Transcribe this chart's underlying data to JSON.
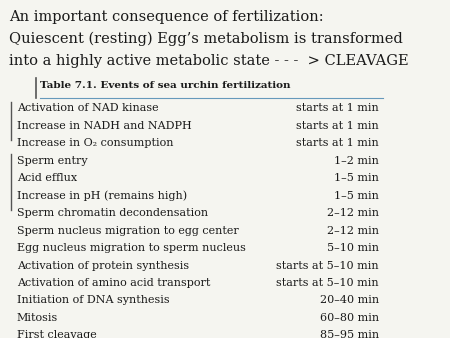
{
  "title_lines": [
    "An important consequence of fertilization:",
    "Quiescent (resting) Egg’s metabolism is transformed",
    "into a highly active metabolic state - - -  > CLEAVAGE"
  ],
  "table_title": "Table 7.1. Events of sea urchin fertilization",
  "rows": [
    [
      "Activation of NAD kinase",
      "starts at 1 min"
    ],
    [
      "Increase in NADH and NADPH",
      "starts at 1 min"
    ],
    [
      "Increase in O₂ consumption",
      "starts at 1 min"
    ],
    [
      "Sperm entry",
      "1–2 min"
    ],
    [
      "Acid efflux",
      "1–5 min"
    ],
    [
      "Increase in pH (remains high)",
      "1–5 min"
    ],
    [
      "Sperm chromatin decondensation",
      "2–12 min"
    ],
    [
      "Sperm nucleus migration to egg center",
      "2–12 min"
    ],
    [
      "Egg nucleus migration to sperm nucleus",
      "5–10 min"
    ],
    [
      "Activation of protein synthesis",
      "starts at 5–10 min"
    ],
    [
      "Activation of amino acid transport",
      "starts at 5–10 min"
    ],
    [
      "Initiation of DNA synthesis",
      "20–40 min"
    ],
    [
      "Mitosis",
      "60–80 min"
    ],
    [
      "First cleavage",
      "85–95 min"
    ]
  ],
  "bg_color": "#f5f5f0",
  "text_color": "#1a1a1a",
  "line_color": "#6699bb",
  "bracket_color": "#555555",
  "title_fontsize": 10.5,
  "table_title_fontsize": 7.5,
  "row_fontsize": 8.0
}
